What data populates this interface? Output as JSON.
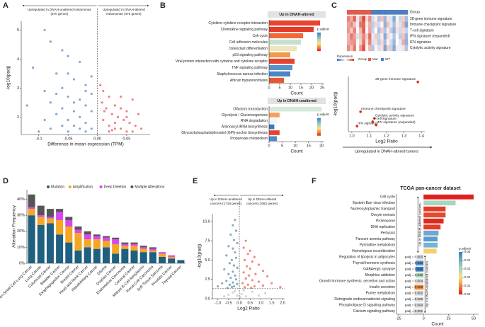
{
  "chart_data": [
    {
      "type": "scatter",
      "panel": "A",
      "xlabel": "Difference in mean expression (TPM)",
      "ylabel": "-log10(padj)",
      "annotations": [
        [
          "Upregulated in DNAH-unaltered melanomas",
          "(570 genes)"
        ],
        [
          "Upregulated in DNAH-altered",
          "melanomas (476 genes)"
        ]
      ],
      "xlim": [
        -0.13,
        0.09
      ],
      "ylim": [
        1.4,
        5.3
      ],
      "xticks": [
        -0.1,
        -0.05,
        {
          "value": 0,
          "label": "0.00"
        },
        0.05
      ],
      "yticks": [
        2,
        3,
        4,
        5
      ],
      "vline": 0,
      "series": [
        {
          "color": "#3a78c2",
          "x": [
            -0.09,
            -0.08,
            -0.06,
            -0.05,
            -0.11,
            -0.03,
            -0.07,
            -0.04,
            -0.02,
            -0.06,
            -0.09,
            -0.01,
            -0.05,
            -0.03,
            -0.08,
            -0.12,
            -0.02,
            -0.06,
            -0.04,
            -0.01,
            -0.07,
            -0.03,
            -0.05,
            -0.09,
            -0.02,
            -0.04,
            -0.06,
            -0.01,
            -0.03,
            -0.08,
            -0.05,
            -0.02,
            -0.1,
            -0.04,
            -0.02,
            -0.05,
            -0.01,
            -0.07
          ],
          "values": [
            5.0,
            4.6,
            4.3,
            4.1,
            3.7,
            3.9,
            3.5,
            3.3,
            3.1,
            3.0,
            2.9,
            2.8,
            2.7,
            2.6,
            2.5,
            2.4,
            2.4,
            2.3,
            2.2,
            2.2,
            2.1,
            2.0,
            1.9,
            1.9,
            1.8,
            1.7,
            1.7,
            1.6,
            1.6,
            1.6,
            1.5,
            1.5,
            1.5,
            2.5,
            2.9,
            3.5,
            3.4,
            2.8
          ]
        },
        {
          "color": "#e8413c",
          "x": [
            0.005,
            0.01,
            0.02,
            0.03,
            0.04,
            0.05,
            0.06,
            0.07,
            0.015,
            0.025,
            0.035,
            0.045,
            0.055,
            0.065,
            0.01,
            0.02,
            0.03,
            0.04,
            0.05,
            0.06,
            0.02,
            0.03,
            0.075,
            0.008,
            0.012,
            0.04,
            0.025,
            0.05
          ],
          "values": [
            3.1,
            2.9,
            2.7,
            2.4,
            2.3,
            2.2,
            2.6,
            2.1,
            2.3,
            2.1,
            2.0,
            1.9,
            1.8,
            1.7,
            1.9,
            1.7,
            1.6,
            1.6,
            1.5,
            1.5,
            1.5,
            1.8,
            1.6,
            2.5,
            2.2,
            2.7,
            1.55,
            2.0
          ]
        }
      ]
    },
    {
      "type": "barh",
      "panel": "B",
      "title": "Up in DNAH-altered",
      "xlabel": "Count",
      "legend_title": "p.adjust",
      "categories": [
        "Cytokine-cytokine receptor interaction",
        "Chemokine signaling pathway",
        "Cell cycle",
        "Cell adhesion molecules",
        "Osteoclast differentiation",
        "p53 signaling pathway",
        "Viral protein interaction with cytokine and cytokine receptor",
        "TNF signaling pathway",
        "Staphylococcus aureus infection",
        "African trypanosomiasis"
      ],
      "values": [
        24,
        21,
        16,
        15,
        13,
        10,
        12,
        11,
        10,
        7
      ],
      "colors": [
        "#e8432f",
        "#e43a2c",
        "#ef6a38",
        "#c6e0cf",
        "#ece6bc",
        "#f39a4a",
        "#e9412f",
        "#5b93c9",
        "#4a86c4",
        "#e8582f"
      ],
      "xlim": [
        0,
        26
      ],
      "xticks": [
        0,
        5,
        10,
        15,
        20,
        25
      ]
    },
    {
      "type": "barh",
      "title": "Up in DNAH-unaltered",
      "xlabel": "Count",
      "legend_title": "p.adjust",
      "categories": [
        "Olfactory transduction",
        "Glycolysis / Gluconeogenesis",
        "RNA degradation",
        "Aminoacyl-tRNA biosynthesis",
        "Glycosylphosphatidylinositol (GPI)-anchor biosynthesis",
        "Propanoate metabolism"
      ],
      "values": [
        20,
        4,
        3,
        2,
        4,
        3
      ],
      "colors": [
        "#d6ead9",
        "#f5a05a",
        "#f4f4f4",
        "#3a78c2",
        "#e8432f",
        "#4f8bc6"
      ],
      "xlim": [
        0,
        21
      ],
      "xticks": [
        0,
        5,
        10,
        15,
        20
      ]
    },
    {
      "type": "heatmap",
      "panel": "C",
      "group_label": "Group",
      "legend_title": "Expression",
      "group_legend_title": "Group",
      "group_legend": [
        {
          "name": "Mut",
          "color": "#e15b4f"
        },
        {
          "name": "WT",
          "color": "#4f7fbf"
        }
      ],
      "group": [
        "Mut",
        "Mut",
        "Mut",
        "Mut",
        "Mut",
        "Mut",
        "Mut",
        "Mut",
        "WT",
        "WT",
        "WT",
        "WT",
        "WT",
        "WT",
        "WT",
        "WT",
        "WT",
        "WT",
        "WT",
        "WT"
      ],
      "rows": [
        "28-gene immune signature",
        "Immune checkpoint signature",
        "T-cell signature",
        "IFN signature (expanded)",
        "IFN signature",
        "Cytolytic activity signature"
      ],
      "matrix": [
        [
          1.2,
          0.8,
          1.5,
          -0.3,
          0.9,
          1.8,
          0.4,
          1.1,
          -0.5,
          0.2,
          -0.8,
          0.6,
          -1.0,
          0.3,
          -0.4,
          -1.2,
          0.1,
          -0.6,
          0.5,
          -0.9
        ],
        [
          0.9,
          1.1,
          0.6,
          -0.2,
          1.3,
          1.5,
          0.2,
          0.8,
          -0.7,
          0.4,
          -0.5,
          0.1,
          -1.1,
          0.6,
          -0.3,
          -0.9,
          0.2,
          -0.4,
          0.7,
          -1.3
        ],
        [
          1.0,
          0.5,
          1.2,
          0.1,
          0.7,
          1.6,
          -0.1,
          0.9,
          -0.6,
          0.0,
          -0.9,
          0.5,
          -0.8,
          0.2,
          -0.7,
          -1.1,
          0.3,
          -0.5,
          0.4,
          -0.6
        ],
        [
          0.7,
          1.3,
          0.9,
          -0.4,
          0.6,
          1.2,
          0.5,
          1.4,
          -0.3,
          0.5,
          -0.6,
          0.2,
          -1.2,
          0.4,
          -0.2,
          -0.8,
          -0.1,
          -0.7,
          0.6,
          -1.0
        ],
        [
          0.8,
          1.0,
          1.1,
          -0.1,
          0.5,
          1.4,
          0.3,
          1.2,
          -0.4,
          0.3,
          -0.7,
          0.4,
          -0.9,
          0.1,
          -0.5,
          -1.0,
          0.0,
          -0.3,
          0.8,
          -1.1
        ],
        [
          1.1,
          0.6,
          1.3,
          0.0,
          1.0,
          1.7,
          0.1,
          0.7,
          -0.8,
          0.1,
          -0.4,
          0.3,
          -1.3,
          0.5,
          -0.6,
          -1.2,
          0.2,
          -0.2,
          0.3,
          -0.8
        ]
      ]
    },
    {
      "type": "scatter",
      "xlabel": "Log2 Ratio",
      "ylabel": "-log10(padj)",
      "footer": "Upregulated in DNAH-altered tumors",
      "xlim": [
        0.98,
        1.42
      ],
      "ylim": [
        0.8,
        5.8
      ],
      "xticks": [
        {
          "value": 1,
          "label": "1.0"
        },
        1.1,
        1.2,
        1.3,
        1.4
      ],
      "series": [
        {
          "color": "#d7301f",
          "labels": [
            "28-gene immune signature",
            "Immune checkpoint signature",
            "Cytolytic activity signature",
            "T-cell signature",
            "IFN signature (expanded)",
            "IFN signature"
          ],
          "x": [
            1.38,
            1.05,
            1.13,
            1.12,
            1.14,
            1.03
          ],
          "values": [
            5.3,
            2.6,
            2.0,
            1.7,
            1.4,
            1.3
          ]
        }
      ]
    },
    {
      "type": "stacked_bar",
      "panel": "D",
      "ylabel": "Alteration Frequency",
      "categories": [
        "Non-Small Cell Lung Cancer",
        "Lung Cancer",
        "Colorectal Cancer",
        "Bladder Cancer",
        "Esophagogastric Cancer",
        "Breast Cancer",
        "Head and Neck Cancer",
        "Hepatobiliary Cancer",
        "Glioma",
        "Ovarian Cancer",
        "Endometrial Carcinoma",
        "Cervical Cancer",
        "Mature B-Cell Neoplasms",
        "Renal Cell Carcinoma",
        "Soft Tissue Sarcoma",
        "Prostate Cancer",
        "Thyroid Cancer"
      ],
      "series": [
        {
          "name": "Mutation",
          "color": "#1f5f7f",
          "values": [
            30,
            24,
            25,
            18,
            13,
            8,
            10,
            9,
            10,
            6,
            9,
            8,
            7,
            7,
            4,
            3,
            2
          ]
        },
        {
          "name": "Amplification",
          "color": "#f5a623",
          "values": [
            4,
            5,
            3,
            9,
            10,
            11,
            5,
            6,
            4,
            6,
            2,
            3,
            2,
            1,
            2,
            1,
            0
          ]
        },
        {
          "name": "Deep Deletion",
          "color": "#d946ef",
          "values": [
            1,
            1,
            1,
            5,
            4,
            2,
            3,
            2,
            2,
            3,
            1,
            1,
            1,
            1,
            1,
            1,
            0
          ]
        },
        {
          "name": "Multiple Alterations",
          "color": "#555555",
          "values": [
            8,
            6,
            5,
            2,
            2,
            2,
            2,
            1,
            1,
            1,
            1,
            1,
            1,
            1,
            0,
            0,
            0
          ]
        }
      ],
      "ylim": [
        0,
        46
      ],
      "yticks": [
        {
          "value": 0,
          "label": "0%"
        },
        {
          "value": 10,
          "label": "10%"
        },
        {
          "value": 20,
          "label": "20%"
        },
        {
          "value": 30,
          "label": "30%"
        },
        {
          "value": 40,
          "label": "40%"
        }
      ]
    },
    {
      "type": "scatter",
      "panel": "E",
      "xlabel": "Log2 Ratio",
      "ylabel": "-log10(padj)",
      "annotations": [
        [
          "Up in DNAH-unaltered",
          "cancers (1718 genes)"
        ],
        [
          "Up in DNAH-altered",
          "cancers (1663 genes)"
        ]
      ],
      "xlim": [
        -1.25,
        2.1
      ],
      "ylim": [
        0,
        11
      ],
      "xticks": [
        {
          "value": -1,
          "label": "-1.0"
        },
        -0.5,
        {
          "value": 0,
          "label": "0.0"
        },
        0.5,
        {
          "value": 1,
          "label": "1.0"
        },
        1.5,
        {
          "value": 2,
          "label": "2.0"
        }
      ],
      "yticks": [
        {
          "value": 0,
          "label": "0.0"
        },
        2.5,
        {
          "value": 5,
          "label": "5.0"
        },
        7.5,
        {
          "value": 10,
          "label": "10.0"
        }
      ],
      "vline": 0,
      "hline": 1.3,
      "series": [
        {
          "color": "#4a7f94",
          "x": [
            -0.2,
            -0.3,
            -0.15,
            -0.4,
            -0.25,
            -0.1,
            -0.5,
            -0.3,
            -0.2,
            -0.6,
            -0.15,
            -0.35,
            -0.45,
            -0.25,
            -0.1,
            -0.7,
            -0.3,
            -0.5,
            -0.2,
            -0.4,
            -0.15,
            -0.6,
            -0.3,
            -0.8,
            -0.1,
            -0.45,
            -0.25,
            -1.0,
            -0.35,
            -0.55
          ],
          "values": [
            10.2,
            9.5,
            8.8,
            8.3,
            7.6,
            7.2,
            6.8,
            6.5,
            6.0,
            5.6,
            5.3,
            5.0,
            4.6,
            4.3,
            4.0,
            3.8,
            3.5,
            3.2,
            3.0,
            2.7,
            2.5,
            2.3,
            2.1,
            2.0,
            1.9,
            1.8,
            1.6,
            1.6,
            1.5,
            1.4
          ]
        },
        {
          "color": "#e84a3f",
          "x": [
            0.3,
            0.2,
            0.5,
            0.4,
            0.7,
            0.25,
            0.6,
            0.9,
            0.35,
            0.5,
            1.1,
            0.2,
            0.75,
            0.45,
            1.3,
            0.3,
            0.6,
            0.9,
            1.5,
            0.15,
            0.4,
            1.1,
            0.7,
            1.9,
            0.25,
            0.55
          ],
          "values": [
            7.5,
            6.6,
            6.2,
            5.8,
            5.4,
            5.0,
            4.8,
            4.4,
            4.2,
            3.9,
            3.6,
            3.4,
            3.2,
            3.0,
            2.9,
            2.6,
            2.4,
            2.2,
            2.0,
            2.0,
            1.8,
            1.7,
            1.6,
            1.5,
            1.5,
            1.4
          ]
        },
        {
          "color": "#bbbbbb",
          "x": [
            -0.3,
            -0.1,
            0.1,
            0.3,
            -0.5,
            0.6,
            0.2,
            -0.2,
            0.9,
            1.2,
            -0.7,
            0.05
          ],
          "values": [
            0.8,
            0.4,
            0.6,
            0.3,
            0.5,
            0.9,
            1.1,
            1.0,
            0.4,
            0.7,
            0.3,
            0.2
          ]
        }
      ]
    },
    {
      "type": "barh",
      "panel": "F",
      "title": "TCGA pan-cancer dataset",
      "xlabel": "Count",
      "legend_title": "p.adjust",
      "side_labels": [
        "Up in DNAH-altered cancers",
        "Up in DNAH-unaltered cancers"
      ],
      "categories": [
        "Cell cycle",
        "Epstein-Barr virus infection",
        "Nucleocytoplasmic transport",
        "Oocyte meiosis",
        "Proteasome",
        "DNA replication",
        "Pertussis",
        "Fanconi anemia pathway",
        "Pyrimidine metabolism",
        "Homologous recombination",
        "Regulation of lipolysis in adipocytes",
        "Thyroid hormone synthesis",
        "GABAergic synapse",
        "Morphine addiction",
        "Growth hormone synthesis, secretion and action",
        "Insulin secretion",
        "Purine metabolism",
        "Retrograde endocannabinoid signaling",
        "Phospholipase D signaling pathway",
        "Calcium signaling pathway"
      ],
      "values": [
        50,
        32,
        22,
        22,
        20,
        17,
        15,
        14,
        14,
        13,
        -7,
        -8,
        -8,
        -8,
        -8,
        -9,
        -9,
        -9,
        -9,
        -10
      ],
      "padj_labels": [
        null,
        null,
        null,
        null,
        null,
        null,
        null,
        null,
        null,
        null,
        "padj = 0.003",
        "padj = 0.039",
        "padj = 0.042",
        "padj = 0.030",
        "padj = 0.004",
        "padj = 0.008",
        "padj = 0.002",
        "padj = 0.009",
        "padj = 0.004",
        "padj = 0.001"
      ],
      "colors": [
        "#e0201e",
        "#a8d5c0",
        "#e23b2a",
        "#e34a2e",
        "#e02a20",
        "#e53b2a",
        "#6fa8d0",
        "#5b9bd0",
        "#78b2d4",
        "#f2d06b",
        "#dddddd",
        "#5b93c9",
        "#3f7fc0",
        "#a9d6b8",
        "#dddddd",
        "#f08a3c",
        "#dddddd",
        "#dddddd",
        "#dddddd",
        "#dddddd"
      ],
      "label_colors": [
        "#e31a1c",
        "#222222",
        "#222222",
        "#222222",
        "#222222",
        "#e31a1c",
        "#222222",
        "#e31a1c",
        "#222222",
        "#e31a1c",
        "#222222",
        "#222222",
        "#222222",
        "#222222",
        "#222222",
        "#222222",
        "#222222",
        "#222222",
        "#222222",
        "#222222"
      ],
      "xlim": [
        -27,
        55
      ],
      "xticks": [
        -25,
        0,
        25,
        50
      ],
      "legend_ticks": [
        0.05,
        0.04,
        0.03,
        0.02,
        0.01,
        {
          "value": 0,
          "label": "0.00"
        }
      ]
    }
  ]
}
